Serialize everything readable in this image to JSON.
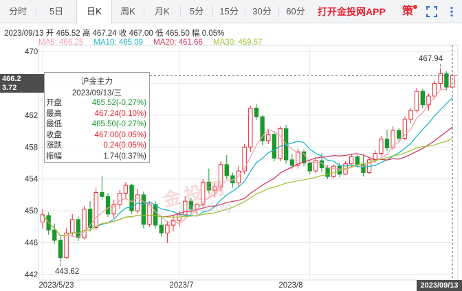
{
  "tabs": [
    {
      "label": "分时",
      "active": false
    },
    {
      "label": "5日",
      "active": false
    },
    {
      "label": "日K",
      "active": true
    },
    {
      "label": "周K",
      "active": false
    },
    {
      "label": "月K",
      "active": false
    },
    {
      "label": "5分",
      "active": false
    },
    {
      "label": "15分",
      "active": false
    },
    {
      "label": "30分",
      "active": false
    },
    {
      "label": "60分",
      "active": false
    }
  ],
  "app_link": "打开金投网APP",
  "strategy_icon": "策",
  "info_line": "2023/09/13  开 465.52  高 467.24  收 467.00  低 465.50  幅 0.05%",
  "ma_line": {
    "ma5": "MA5: 466.25",
    "ma10": "MA10: 465.09",
    "ma20": "MA20: 461.66",
    "ma30": "MA30: 459.57"
  },
  "colors": {
    "up": "#e8232e",
    "down": "#1a9a2e",
    "ma5": "#f2a1b0",
    "ma10": "#1fb5c7",
    "ma20": "#d63a5f",
    "ma30": "#a3c43a"
  },
  "tooltip": {
    "title": "沪金主力",
    "date": "2023/09/13/三",
    "rows": [
      {
        "key": "开盘",
        "value": "465.52(-0.27%)",
        "color": "#1a9a2e"
      },
      {
        "key": "最高",
        "value": "467.24(0.10%)",
        "color": "#e8232e"
      },
      {
        "key": "最低",
        "value": "465.50(-0.27%)",
        "color": "#1a9a2e"
      },
      {
        "key": "收盘",
        "value": "467.00(0.05%)",
        "color": "#e8232e"
      },
      {
        "key": "涨跌",
        "value": "0.24(0.05%)",
        "color": "#e8232e"
      },
      {
        "key": "振幅",
        "value": "1.74(0.37%)",
        "color": "#333333"
      }
    ]
  },
  "cross_price": "466.2",
  "cross_change": "3.72",
  "high_marker": "467.94",
  "low_marker": "443.62",
  "date_cross": "2023/09/13",
  "watermark": "金投网",
  "watermark_url": "cngold.org",
  "chart_data": {
    "type": "candlestick",
    "title": "沪金主力",
    "y_ticks": [
      470,
      466,
      462,
      458,
      454,
      450,
      446,
      442
    ],
    "ylim": [
      442,
      471
    ],
    "x_labels": [
      "2023/5/23",
      "2023/7",
      "2023/8"
    ],
    "series_names": [
      "MA5",
      "MA10",
      "MA20",
      "MA30"
    ],
    "last_close": 467.0,
    "candles": [
      [
        448.6,
        450.2,
        447.8,
        449.5
      ],
      [
        449.4,
        449.8,
        447.0,
        447.6
      ],
      [
        447.6,
        448.4,
        445.9,
        446.3
      ],
      [
        446.3,
        447.0,
        443.62,
        444.1
      ],
      [
        444.1,
        447.8,
        444.0,
        447.2
      ],
      [
        447.2,
        449.6,
        446.8,
        448.9
      ],
      [
        448.9,
        449.3,
        446.2,
        446.6
      ],
      [
        446.6,
        450.6,
        446.4,
        450.2
      ],
      [
        450.2,
        451.2,
        447.4,
        447.9
      ],
      [
        447.9,
        452.8,
        447.6,
        452.3
      ],
      [
        452.3,
        454.4,
        451.4,
        451.8
      ],
      [
        451.8,
        452.2,
        449.2,
        449.6
      ],
      [
        449.6,
        451.4,
        449.1,
        450.8
      ],
      [
        450.8,
        452.6,
        450.2,
        452.2
      ],
      [
        452.2,
        453.6,
        451.5,
        453.2
      ],
      [
        453.2,
        453.4,
        449.6,
        450.0
      ],
      [
        450.0,
        452.7,
        449.6,
        452.0
      ],
      [
        452.0,
        452.4,
        447.8,
        448.3
      ],
      [
        448.3,
        451.2,
        448.0,
        450.8
      ],
      [
        450.8,
        451.2,
        447.8,
        448.2
      ],
      [
        448.2,
        449.3,
        446.7,
        447.2
      ],
      [
        447.2,
        448.7,
        446.0,
        448.2
      ],
      [
        448.2,
        449.5,
        447.4,
        448.8
      ],
      [
        448.8,
        450.0,
        448.0,
        449.5
      ],
      [
        449.5,
        451.8,
        449.2,
        451.2
      ],
      [
        451.2,
        451.6,
        449.6,
        450.2
      ],
      [
        450.2,
        451.0,
        449.5,
        450.8
      ],
      [
        450.8,
        454.0,
        450.5,
        453.6
      ],
      [
        453.6,
        455.3,
        452.2,
        452.6
      ],
      [
        452.6,
        453.5,
        451.7,
        453.0
      ],
      [
        453.0,
        456.2,
        452.5,
        455.8
      ],
      [
        455.8,
        457.0,
        454.0,
        454.4
      ],
      [
        454.4,
        454.8,
        452.9,
        453.5
      ],
      [
        453.5,
        455.6,
        453.1,
        455.0
      ],
      [
        455.0,
        458.4,
        454.6,
        458.0
      ],
      [
        458.0,
        463.2,
        457.4,
        462.9
      ],
      [
        462.9,
        463.4,
        461.4,
        461.8
      ],
      [
        461.8,
        462.0,
        458.2,
        458.8
      ],
      [
        458.8,
        460.2,
        458.4,
        459.6
      ],
      [
        459.6,
        460.0,
        456.2,
        456.6
      ],
      [
        456.6,
        460.6,
        456.2,
        460.3
      ],
      [
        460.3,
        460.8,
        455.9,
        456.4
      ],
      [
        456.4,
        457.2,
        455.2,
        455.7
      ],
      [
        455.7,
        457.8,
        455.3,
        457.4
      ],
      [
        457.4,
        457.7,
        455.6,
        456.0
      ],
      [
        456.0,
        456.2,
        454.6,
        455.0
      ],
      [
        455.0,
        456.8,
        454.7,
        456.3
      ],
      [
        456.3,
        457.2,
        454.8,
        455.4
      ],
      [
        455.4,
        455.7,
        454.0,
        454.3
      ],
      [
        454.3,
        455.8,
        454.1,
        455.6
      ],
      [
        455.6,
        456.0,
        454.2,
        454.6
      ],
      [
        454.6,
        456.2,
        454.5,
        455.9
      ],
      [
        455.9,
        457.1,
        455.6,
        456.8
      ],
      [
        456.8,
        457.0,
        455.4,
        455.8
      ],
      [
        455.8,
        457.0,
        454.3,
        454.8
      ],
      [
        454.8,
        456.8,
        454.6,
        456.4
      ],
      [
        456.4,
        457.6,
        456.0,
        457.2
      ],
      [
        457.2,
        459.4,
        456.9,
        459.0
      ],
      [
        459.0,
        460.2,
        457.5,
        457.9
      ],
      [
        457.9,
        460.6,
        457.7,
        460.1
      ],
      [
        460.1,
        460.4,
        458.7,
        459.1
      ],
      [
        459.1,
        461.8,
        458.9,
        461.5
      ],
      [
        461.5,
        462.9,
        461.0,
        462.6
      ],
      [
        462.6,
        465.4,
        462.3,
        465.0
      ],
      [
        465.0,
        465.3,
        462.9,
        463.3
      ],
      [
        463.3,
        464.7,
        462.6,
        464.4
      ],
      [
        464.4,
        466.3,
        464.1,
        466.0
      ],
      [
        466.0,
        467.94,
        465.3,
        467.2
      ],
      [
        467.2,
        467.5,
        465.1,
        465.52
      ],
      [
        465.52,
        467.24,
        465.5,
        467.0
      ]
    ]
  }
}
